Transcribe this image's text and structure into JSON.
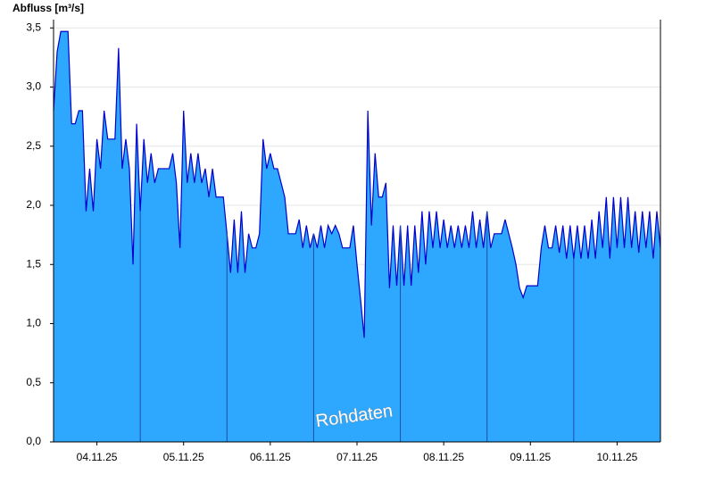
{
  "chart_data": {
    "type": "area",
    "y_label": "Abfluss [m³/s]",
    "annotation": "Rohdaten",
    "color": "#2ea8ff",
    "line_color": "#0000cc",
    "grid": true,
    "xlim": [
      0,
      168
    ],
    "ylim": [
      0,
      3.57
    ],
    "yticks": [
      {
        "value": 0,
        "label": "0,0"
      },
      {
        "value": 0.5,
        "label": "0,5"
      },
      {
        "value": 1,
        "label": "1,0"
      },
      {
        "value": 1.5,
        "label": "1,5"
      },
      {
        "value": 2,
        "label": "2,0"
      },
      {
        "value": 2.5,
        "label": "2,5"
      },
      {
        "value": 3,
        "label": "3,0"
      },
      {
        "value": 3.5,
        "label": "3,5"
      }
    ],
    "xticks": [
      {
        "value": 12,
        "label": "04.11.25"
      },
      {
        "value": 36,
        "label": "05.11.25"
      },
      {
        "value": 60,
        "label": "06.11.25"
      },
      {
        "value": 84,
        "label": "07.11.25"
      },
      {
        "value": 108,
        "label": "08.11.25"
      },
      {
        "value": 132,
        "label": "09.11.25"
      },
      {
        "value": 156,
        "label": "10.11.25"
      }
    ],
    "x": [
      0,
      1,
      2,
      3,
      4,
      5,
      6,
      7,
      8,
      9,
      10,
      11,
      12,
      13,
      14,
      15,
      16,
      17,
      18,
      19,
      20,
      21,
      22,
      23,
      24,
      25,
      26,
      27,
      28,
      29,
      30,
      31,
      32,
      33,
      34,
      35,
      36,
      37,
      38,
      39,
      40,
      41,
      42,
      43,
      44,
      45,
      46,
      47,
      48,
      49,
      50,
      51,
      52,
      53,
      54,
      55,
      56,
      57,
      58,
      59,
      60,
      61,
      62,
      63,
      64,
      65,
      66,
      67,
      68,
      69,
      70,
      71,
      72,
      73,
      74,
      75,
      76,
      77,
      78,
      79,
      80,
      81,
      82,
      83,
      84,
      85,
      86,
      87,
      88,
      89,
      90,
      91,
      92,
      93,
      94,
      95,
      96,
      97,
      98,
      99,
      100,
      101,
      102,
      103,
      104,
      105,
      106,
      107,
      108,
      109,
      110,
      111,
      112,
      113,
      114,
      115,
      116,
      117,
      118,
      119,
      120,
      121,
      122,
      123,
      124,
      125,
      126,
      127,
      128,
      129,
      130,
      131,
      132,
      133,
      134,
      135,
      136,
      137,
      138,
      139,
      140,
      141,
      142,
      143,
      144,
      145,
      146,
      147,
      148,
      149,
      150,
      151,
      152,
      153,
      154,
      155,
      156,
      157,
      158,
      159,
      160,
      161,
      162,
      163,
      164,
      165,
      166,
      167,
      168
    ],
    "values": [
      2.8,
      3.3,
      3.47,
      3.47,
      3.47,
      2.69,
      2.69,
      2.8,
      2.8,
      1.95,
      2.31,
      1.95,
      2.56,
      2.31,
      2.8,
      2.56,
      2.56,
      2.56,
      3.33,
      2.31,
      2.56,
      2.31,
      1.5,
      2.69,
      1.95,
      2.56,
      2.19,
      2.44,
      2.19,
      2.31,
      2.31,
      2.31,
      2.31,
      2.44,
      2.19,
      1.64,
      2.8,
      2.19,
      2.44,
      2.19,
      2.44,
      2.19,
      2.31,
      2.07,
      2.31,
      2.07,
      2.07,
      2.07,
      1.76,
      1.43,
      1.88,
      1.43,
      1.95,
      1.43,
      1.76,
      1.64,
      1.64,
      1.76,
      2.56,
      2.31,
      2.44,
      2.31,
      2.31,
      2.19,
      2.07,
      1.76,
      1.76,
      1.76,
      1.88,
      1.64,
      1.83,
      1.64,
      1.76,
      1.64,
      1.83,
      1.64,
      1.83,
      1.76,
      1.83,
      1.76,
      1.64,
      1.64,
      1.64,
      1.83,
      1.5,
      1.2,
      0.88,
      2.8,
      1.83,
      2.44,
      2.07,
      2.07,
      2.19,
      1.3,
      1.83,
      1.32,
      1.83,
      1.32,
      1.83,
      1.32,
      1.83,
      1.43,
      1.95,
      1.5,
      1.95,
      1.64,
      1.95,
      1.64,
      1.88,
      1.64,
      1.83,
      1.64,
      1.83,
      1.64,
      1.83,
      1.64,
      1.95,
      1.64,
      1.88,
      1.64,
      1.95,
      1.64,
      1.76,
      1.76,
      1.76,
      1.88,
      1.76,
      1.64,
      1.5,
      1.3,
      1.22,
      1.32,
      1.32,
      1.32,
      1.32,
      1.64,
      1.83,
      1.64,
      1.64,
      1.83,
      1.6,
      1.83,
      1.55,
      1.83,
      1.55,
      1.83,
      1.55,
      1.83,
      1.55,
      1.88,
      1.55,
      1.95,
      1.64,
      2.07,
      1.55,
      2.07,
      1.64,
      2.07,
      1.64,
      2.07,
      1.64,
      1.95,
      1.6,
      1.95,
      1.64,
      1.95,
      1.55,
      1.95,
      1.64
    ]
  }
}
